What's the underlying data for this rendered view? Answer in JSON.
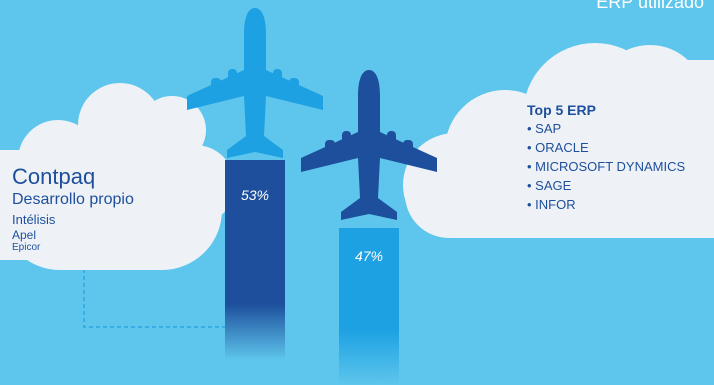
{
  "title": "ERP utilizado",
  "left_cloud": {
    "items": [
      "Contpaq",
      "Desarrollo propio",
      "Intélisis",
      "Apel",
      "Epicor"
    ]
  },
  "right_cloud": {
    "heading": "Top 5 ERP",
    "items": [
      "• SAP",
      "• ORACLE",
      "• MICROSOFT DYNAMICS",
      "• SAGE",
      "• INFOR"
    ]
  },
  "bars": [
    {
      "label": "53%",
      "value": 53,
      "color": "#1d4f9c"
    },
    {
      "label": "47%",
      "value": 47,
      "color": "#1da1e3"
    }
  ],
  "colors": {
    "background": "#5ec6ec",
    "cloud": "#eef2f6",
    "plane_light": "#1da1e3",
    "plane_dark": "#1d4f9c",
    "text": "#1e4f9c"
  },
  "icons": [
    "airplane-icon",
    "cloud-icon"
  ]
}
